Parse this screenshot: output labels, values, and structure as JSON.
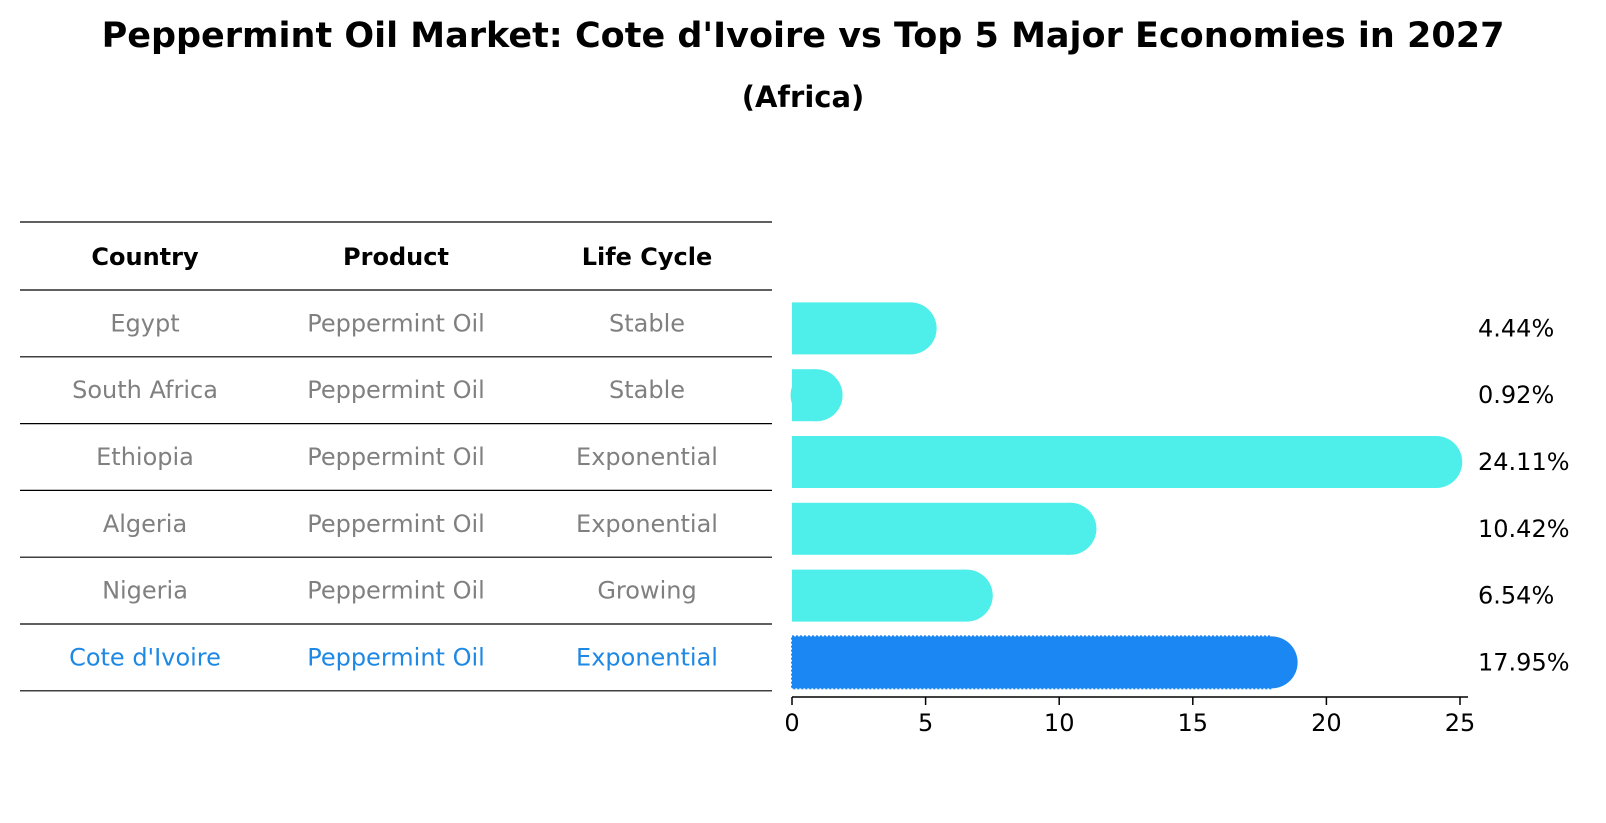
{
  "title": "Peppermint Oil Market: Cote d'Ivoire vs Top 5 Major Economies in 2027",
  "subtitle": "(Africa)",
  "table": {
    "headers": [
      "Country",
      "Product",
      "Life Cycle"
    ],
    "rows": [
      {
        "country": "Egypt",
        "product": "Peppermint Oil",
        "life_cycle": "Stable",
        "highlight": false
      },
      {
        "country": "South Africa",
        "product": "Peppermint Oil",
        "life_cycle": "Stable",
        "highlight": false
      },
      {
        "country": "Ethiopia",
        "product": "Peppermint Oil",
        "life_cycle": "Exponential",
        "highlight": false
      },
      {
        "country": "Algeria",
        "product": "Peppermint Oil",
        "life_cycle": "Exponential",
        "highlight": false
      },
      {
        "country": "Nigeria",
        "product": "Peppermint Oil",
        "life_cycle": "Growing",
        "highlight": false
      },
      {
        "country": "Cote d'Ivoire",
        "product": "Peppermint Oil",
        "life_cycle": "Exponential",
        "highlight": true
      }
    ]
  },
  "chart_data": {
    "type": "bar",
    "orientation": "horizontal",
    "categories": [
      "Egypt",
      "South Africa",
      "Ethiopia",
      "Algeria",
      "Nigeria",
      "Cote d'Ivoire"
    ],
    "values": [
      4.44,
      0.92,
      24.11,
      10.42,
      6.54,
      17.95
    ],
    "value_labels": [
      "4.44%",
      "0.92%",
      "24.11%",
      "10.42%",
      "6.54%",
      "17.95%"
    ],
    "xlim": [
      0,
      25
    ],
    "xticks": [
      0,
      5,
      10,
      15,
      20,
      25
    ],
    "grid": false,
    "colors": {
      "default": "#4eeeea",
      "highlight": "#1a87f2"
    }
  },
  "colors": {
    "text_muted": "#808080",
    "text_highlight": "#1e88e5"
  }
}
